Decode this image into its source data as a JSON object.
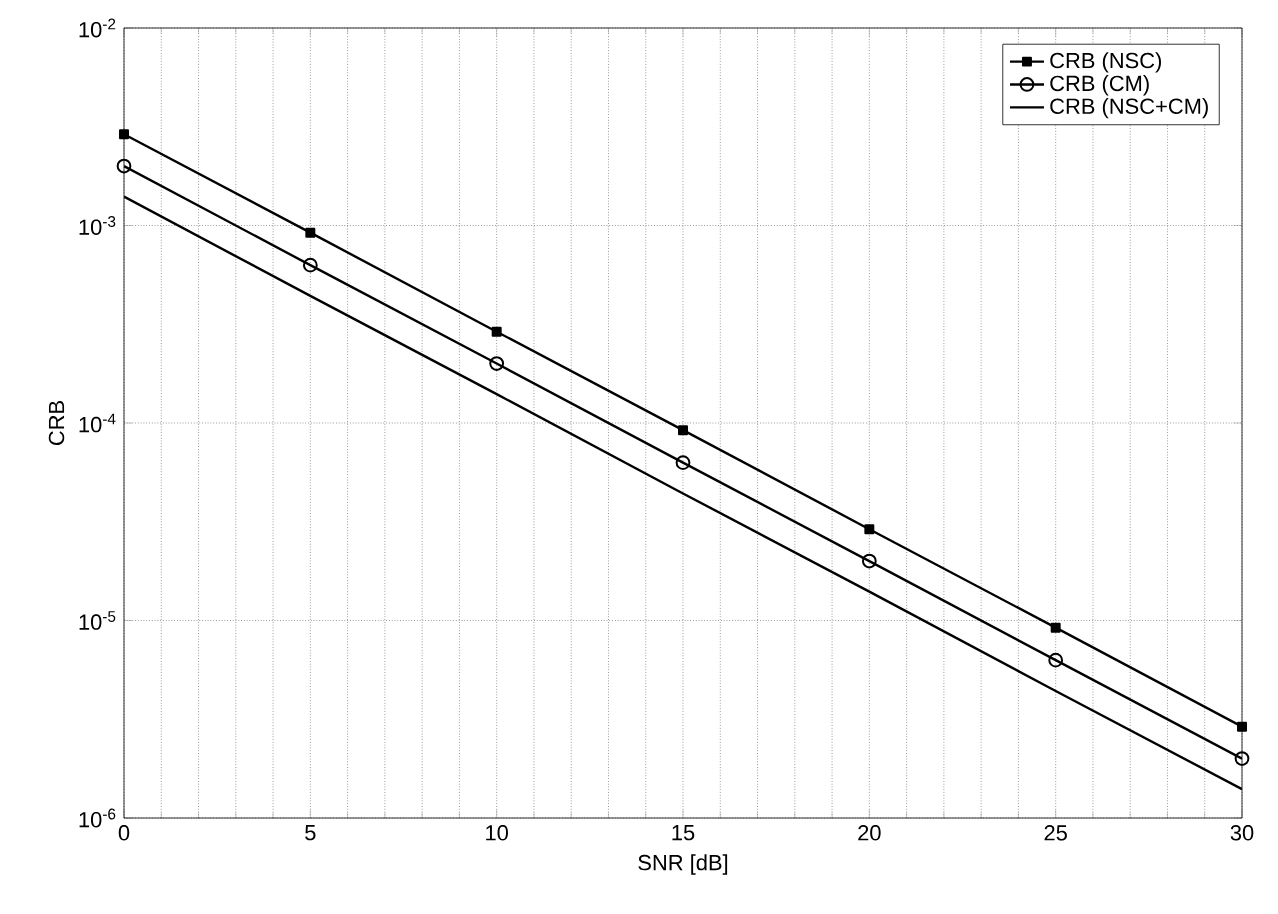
{
  "chart_data": {
    "type": "line",
    "xlabel": "SNR [dB]",
    "ylabel": "CRB",
    "x": [
      0,
      5,
      10,
      15,
      20,
      25,
      30
    ],
    "series": [
      {
        "name": "CRB (NSC)",
        "color": "#000000",
        "marker": "square",
        "values": [
          0.0029,
          0.00092,
          0.00029,
          9.2e-05,
          2.9e-05,
          9.2e-06,
          2.9e-06
        ]
      },
      {
        "name": "CRB (CM)",
        "color": "#000000",
        "marker": "circle",
        "values": [
          0.002,
          0.00063,
          0.0002,
          6.3e-05,
          2e-05,
          6.3e-06,
          2e-06
        ]
      },
      {
        "name": "CRB (NSC+CM)",
        "color": "#000000",
        "marker": "none",
        "values": [
          0.0014,
          0.00044,
          0.00014,
          4.4e-05,
          1.4e-05,
          4.4e-06,
          1.4e-06
        ]
      }
    ],
    "xlim": [
      0,
      30
    ],
    "xticks": [
      0,
      5,
      10,
      15,
      20,
      25,
      30
    ],
    "ylim": [
      1e-06,
      0.01
    ],
    "yticks": [
      {
        "value": 1e-06,
        "label": "10$^{-6}$"
      },
      {
        "value": 1e-05,
        "label": "10$^{-5}$"
      },
      {
        "value": 0.0001,
        "label": "10$^{-4}$"
      },
      {
        "value": 0.001,
        "label": "10$^{-3}$"
      },
      {
        "value": 0.01,
        "label": "10$^{-2}$"
      }
    ],
    "log": "y",
    "grid": true,
    "legend": "top right",
    "line_style": "solid"
  }
}
